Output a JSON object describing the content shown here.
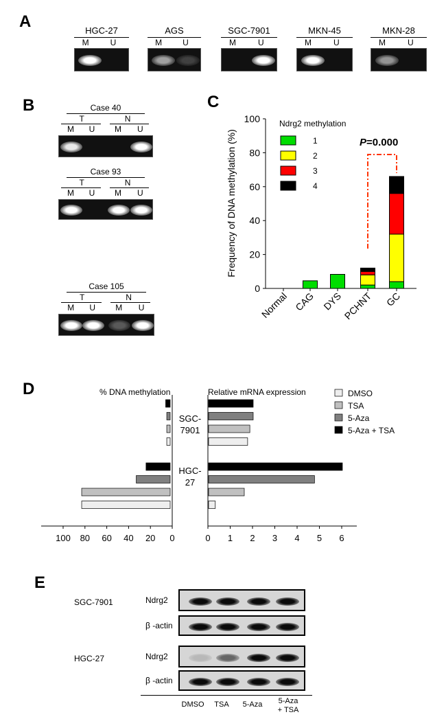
{
  "panel_letters": {
    "a": "A",
    "b": "B",
    "c": "C",
    "d": "D",
    "e": "E"
  },
  "panel_a": {
    "cell_lines": [
      {
        "name": "HGC-27",
        "m": "M",
        "u": "U",
        "m_band": 1.0,
        "u_band": 0
      },
      {
        "name": "AGS",
        "m": "M",
        "u": "U",
        "m_band": 0.6,
        "u_band": 0.2
      },
      {
        "name": "SGC-7901",
        "m": "M",
        "u": "U",
        "m_band": 0,
        "u_band": 1.0
      },
      {
        "name": "MKN-45",
        "m": "M",
        "u": "U",
        "m_band": 1.0,
        "u_band": 0
      },
      {
        "name": "MKN-28",
        "m": "M",
        "u": "U",
        "m_band": 0.55,
        "u_band": 0
      }
    ]
  },
  "panel_b": {
    "cases": [
      {
        "title": "Case 40",
        "t": "T",
        "n": "N",
        "lanes": [
          "M",
          "U",
          "M",
          "U"
        ],
        "bands": [
          0.9,
          0,
          0,
          1.0
        ]
      },
      {
        "title": "Case 93",
        "t": "T",
        "n": "N",
        "lanes": [
          "M",
          "U",
          "M",
          "U"
        ],
        "bands": [
          1.0,
          0,
          1.0,
          1.0
        ]
      },
      {
        "title": "Case 105",
        "t": "T",
        "n": "N",
        "lanes": [
          "M",
          "U",
          "M",
          "U"
        ],
        "bands": [
          1.0,
          1.0,
          0.3,
          1.0
        ]
      }
    ]
  },
  "chart_data": [
    {
      "type": "bar",
      "stacked": true,
      "ylabel": "Frequency of DNA methylation (%)",
      "legend_title": "Ndrg2 methylation",
      "legend_position": "top-left",
      "annotation": {
        "p": "P",
        "rest": "=0.000"
      },
      "categories": [
        "Normal",
        "CAG",
        "DYS",
        "PCHNT",
        "GC"
      ],
      "ylim": [
        0,
        100
      ],
      "yticks": [
        "0",
        "20",
        "40",
        "60",
        "80",
        "100"
      ],
      "series": [
        {
          "name": "1",
          "color": "#00dd00",
          "values": [
            0,
            4.5,
            8.3,
            2,
            4
          ]
        },
        {
          "name": "2",
          "color": "#ffff00",
          "values": [
            0,
            0,
            0,
            6,
            28
          ]
        },
        {
          "name": "3",
          "color": "#ff0000",
          "values": [
            0,
            0,
            0,
            2,
            24
          ]
        },
        {
          "name": "4",
          "color": "#000000",
          "values": [
            0,
            0,
            0,
            2,
            10
          ]
        }
      ]
    },
    {
      "type": "bar",
      "orientation": "horizontal",
      "left_title": "% DNA methylation",
      "right_title": "Relative mRNA expression",
      "groups": [
        {
          "label_line1": "SGC-",
          "label_line2": "7901"
        },
        {
          "label_line1": "HGC-",
          "label_line2": "27"
        }
      ],
      "treatments": [
        {
          "name": "DMSO",
          "color": "#eeeeee"
        },
        {
          "name": "TSA",
          "color": "#c0c0c0"
        },
        {
          "name": "5-Aza",
          "color": "#808080"
        },
        {
          "name": "5-Aza + TSA",
          "color": "#000000"
        }
      ],
      "methylation": [
        [
          5,
          5,
          5,
          6
        ],
        [
          83,
          83,
          33,
          24
        ]
      ],
      "expression": [
        [
          1.75,
          1.85,
          2.0,
          2.0
        ],
        [
          0.3,
          1.6,
          4.75,
          6.0
        ]
      ],
      "left_ticks": [
        "100",
        "80",
        "60",
        "40",
        "20",
        "0"
      ],
      "right_ticks": [
        "0",
        "1",
        "2",
        "3",
        "4",
        "5",
        "6"
      ],
      "left_range": [
        0,
        100
      ],
      "right_range": [
        0,
        6
      ]
    }
  ],
  "panel_e": {
    "cell_lines": [
      {
        "name": "SGC-7901",
        "rows": [
          {
            "label": "Ndrg2",
            "bands": [
              1,
              1,
              1,
              1
            ]
          },
          {
            "label": "β -actin",
            "bands": [
              1,
              1,
              1,
              1
            ]
          }
        ]
      },
      {
        "name": "HGC-27",
        "rows": [
          {
            "label": "Ndrg2",
            "bands": [
              0.15,
              0.55,
              1,
              1
            ]
          },
          {
            "label": "β -actin",
            "bands": [
              1,
              1,
              1,
              1
            ]
          }
        ]
      }
    ],
    "lanes": [
      "DMSO",
      "TSA",
      "5-Aza",
      "5-Aza",
      "+ TSA"
    ]
  }
}
